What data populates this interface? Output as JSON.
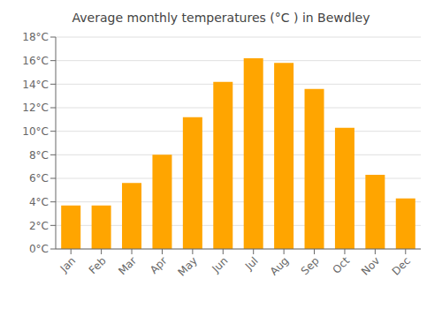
{
  "chart_data": {
    "type": "bar",
    "title": "Average monthly temperatures (°C ) in Bewdley",
    "categories": [
      "Jan",
      "Feb",
      "Mar",
      "Apr",
      "May",
      "Jun",
      "Jul",
      "Aug",
      "Sep",
      "Oct",
      "Nov",
      "Dec"
    ],
    "values": [
      3.7,
      3.7,
      5.6,
      8.0,
      11.2,
      14.2,
      16.2,
      15.8,
      13.6,
      10.3,
      6.3,
      4.3
    ],
    "color": "#FFA500",
    "ylim": [
      0,
      18
    ],
    "yticks": [
      {
        "value": 0,
        "label": "0°C"
      },
      {
        "value": 2,
        "label": "2°C"
      },
      {
        "value": 4,
        "label": "4°C"
      },
      {
        "value": 6,
        "label": "6°C"
      },
      {
        "value": 8,
        "label": "8°C"
      },
      {
        "value": 10,
        "label": "10°C"
      },
      {
        "value": 12,
        "label": "12°C"
      },
      {
        "value": 14,
        "label": "14°C"
      },
      {
        "value": 16,
        "label": "16°C"
      },
      {
        "value": 18,
        "label": "18°C"
      }
    ],
    "grid": true
  }
}
